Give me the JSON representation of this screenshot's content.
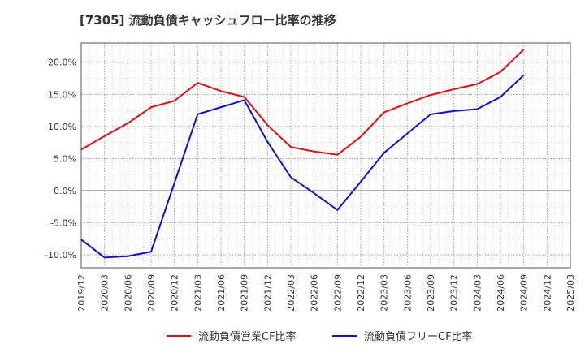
{
  "chart_data": {
    "type": "line",
    "title": "[7305]  流動負債キャッシュフロー比率の推移",
    "xlabel": "",
    "ylabel": "",
    "ylim": [
      -12,
      23
    ],
    "yticks": [
      -10,
      -5,
      0,
      5,
      10,
      15,
      20
    ],
    "ytick_labels": [
      "-10.0%",
      "-5.0%",
      "0.0%",
      "5.0%",
      "10.0%",
      "15.0%",
      "20.0%"
    ],
    "x": [
      "2019/12",
      "2020/03",
      "2020/06",
      "2020/09",
      "2020/12",
      "2021/03",
      "2021/06",
      "2021/09",
      "2021/12",
      "2022/03",
      "2022/06",
      "2022/09",
      "2022/12",
      "2023/03",
      "2023/06",
      "2023/09",
      "2023/12",
      "2024/03",
      "2024/06",
      "2024/09",
      "2024/12",
      "2025/03"
    ],
    "grid": true,
    "legend_position": "bottom",
    "series": [
      {
        "name": "流動負債営業CF比率",
        "color": "#dd1111",
        "values": [
          6.4,
          8.5,
          10.5,
          13.0,
          14.0,
          16.8,
          15.5,
          14.6,
          10.2,
          6.8,
          6.1,
          5.6,
          8.4,
          12.2,
          13.6,
          14.9,
          15.8,
          16.6,
          18.5,
          22.0,
          null,
          null
        ]
      },
      {
        "name": "流動負債フリーCF比率",
        "color": "#1111cc",
        "values": [
          -7.6,
          -10.4,
          -10.2,
          -9.5,
          1.2,
          11.9,
          13.0,
          14.1,
          7.6,
          2.1,
          -0.4,
          -3.0,
          1.4,
          5.9,
          8.9,
          11.9,
          12.4,
          12.7,
          14.6,
          18.0,
          null,
          null
        ]
      }
    ]
  }
}
